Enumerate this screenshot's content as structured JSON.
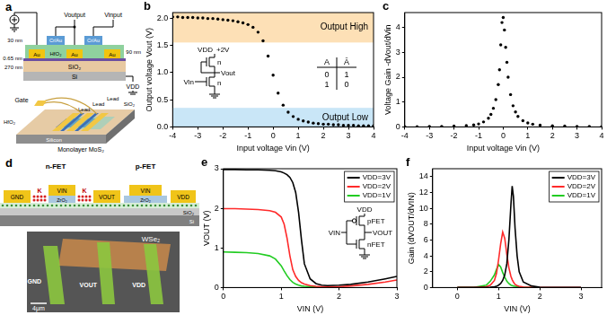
{
  "chart_data": [
    {
      "panel": "b",
      "type": "scatter",
      "x_label": "Input voltage Vin (V)",
      "y_label": "Output voltage Vout (V)",
      "x": [
        -4,
        -3.8,
        -3.6,
        -3.4,
        -3.2,
        -3,
        -2.8,
        -2.6,
        -2.4,
        -2.2,
        -2,
        -1.8,
        -1.6,
        -1.4,
        -1.2,
        -1,
        -0.8,
        -0.6,
        -0.4,
        -0.2,
        0,
        0.2,
        0.4,
        0.6,
        0.8,
        1,
        1.2,
        1.4,
        1.6,
        1.8,
        2,
        2.2,
        2.4,
        2.6,
        2.8,
        3,
        3.2,
        3.4,
        3.6,
        3.8,
        4
      ],
      "values": [
        2.02,
        2.02,
        2.01,
        2.01,
        2.01,
        2,
        2,
        1.99,
        1.99,
        1.98,
        1.97,
        1.96,
        1.95,
        1.93,
        1.91,
        1.88,
        1.83,
        1.74,
        1.58,
        1.3,
        0.95,
        0.62,
        0.4,
        0.27,
        0.19,
        0.14,
        0.11,
        0.09,
        0.07,
        0.06,
        0.05,
        0.05,
        0.04,
        0.04,
        0.03,
        0.03,
        0.03,
        0.02,
        0.02,
        0.02,
        0.02
      ],
      "color": "#000000",
      "xlim": [
        -4,
        4
      ],
      "xticks": [
        -4,
        -3,
        -2,
        -1,
        0,
        1,
        2,
        3,
        4
      ],
      "ylim": [
        0,
        2.1
      ],
      "yticks": [
        {
          "value": 0,
          "label": "0.0"
        },
        {
          "value": 0.5,
          "label": "0.5"
        },
        {
          "value": 1,
          "label": "1.0"
        },
        {
          "value": 1.5,
          "label": "1.5"
        },
        {
          "value": 2,
          "label": "2.0"
        }
      ],
      "grid": false,
      "bands": [
        {
          "label": "Output High",
          "from": 1.55,
          "to": 2.1,
          "color": "#fde0b6"
        },
        {
          "label": "Output Low",
          "from": 0,
          "to": 0.35,
          "color": "#c9e6f7"
        }
      ],
      "inset": {
        "supply": "VDD",
        "supply_value": "+2V",
        "transistors": [
          "n",
          "n"
        ],
        "output": "Vout",
        "input": "Vin",
        "truth_table": {
          "header": [
            "A",
            "Ā"
          ],
          "rows": [
            [
              0,
              1
            ],
            [
              1,
              0
            ]
          ]
        }
      }
    },
    {
      "panel": "c",
      "type": "scatter",
      "x_label": "Input voltage Vin (V)",
      "y_label": "Voltage Gain -dVout/dVin",
      "x": [
        -4,
        -3.5,
        -3,
        -2.5,
        -2,
        -1.5,
        -1.2,
        -1,
        -0.8,
        -0.6,
        -0.5,
        -0.4,
        -0.3,
        -0.2,
        -0.15,
        -0.1,
        -0.05,
        0,
        0.05,
        0.1,
        0.15,
        0.2,
        0.3,
        0.4,
        0.5,
        0.6,
        0.8,
        1,
        1.2,
        1.5,
        2,
        2.5,
        3,
        3.5,
        4
      ],
      "values": [
        0.01,
        0.01,
        0.02,
        0.02,
        0.03,
        0.05,
        0.08,
        0.12,
        0.2,
        0.35,
        0.5,
        0.75,
        1.1,
        1.7,
        2.3,
        3.3,
        4.2,
        4.4,
        3.9,
        3.2,
        2.6,
        2.0,
        1.3,
        0.85,
        0.6,
        0.42,
        0.25,
        0.16,
        0.11,
        0.07,
        0.04,
        0.03,
        0.02,
        0.02,
        0.01
      ],
      "color": "#000000",
      "xlim": [
        -4,
        4
      ],
      "xticks": [
        -4,
        -3,
        -2,
        -1,
        0,
        1,
        2,
        3,
        4
      ],
      "ylim": [
        0,
        4.6
      ],
      "yticks": [
        0,
        1,
        2,
        3,
        4
      ],
      "grid": false
    },
    {
      "panel": "e",
      "type": "line",
      "x_label": "VIN (V)",
      "y_label": "VOUT (V)",
      "x": [
        0,
        0.2,
        0.4,
        0.6,
        0.8,
        0.9,
        1.0,
        1.05,
        1.1,
        1.15,
        1.2,
        1.25,
        1.3,
        1.35,
        1.4,
        1.5,
        1.6,
        1.7,
        1.8,
        2.0,
        2.2,
        2.5,
        2.8,
        3.0
      ],
      "series": [
        {
          "name": "VDD=3V",
          "color": "#000000",
          "values": [
            2.98,
            2.98,
            2.97,
            2.97,
            2.96,
            2.95,
            2.92,
            2.89,
            2.85,
            2.78,
            2.65,
            2.4,
            1.9,
            1.2,
            0.6,
            0.22,
            0.1,
            0.06,
            0.05,
            0.06,
            0.08,
            0.14,
            0.22,
            0.28
          ]
        },
        {
          "name": "VDD=2V",
          "color": "#ff2a2a",
          "values": [
            1.99,
            1.99,
            1.98,
            1.97,
            1.94,
            1.9,
            1.78,
            1.6,
            1.25,
            0.8,
            0.45,
            0.28,
            0.18,
            0.12,
            0.09,
            0.05,
            0.03,
            0.02,
            0.02,
            0.02,
            0.04,
            0.08,
            0.14,
            0.19
          ]
        },
        {
          "name": "VDD=1V",
          "color": "#22cc22",
          "values": [
            0.9,
            0.89,
            0.88,
            0.86,
            0.8,
            0.72,
            0.55,
            0.42,
            0.3,
            0.2,
            0.13,
            0.09,
            0.06,
            0.04,
            0.03,
            0.02,
            0.01,
            0.01,
            0.01,
            null,
            null,
            null,
            null,
            null
          ]
        }
      ],
      "xlim": [
        0,
        3
      ],
      "xticks": [
        0,
        1,
        2,
        3
      ],
      "ylim": [
        0,
        3
      ],
      "yticks": [
        0,
        1,
        2,
        3
      ],
      "grid": false,
      "legend": "upper right",
      "inset": {
        "supply": "VDD",
        "transistors": [
          "pFET",
          "nFET"
        ],
        "input": "VIN",
        "output": "VOUT"
      }
    },
    {
      "panel": "f",
      "type": "line",
      "x_label": "VIN (V)",
      "y_label": "Gain (dVOUT/dVIN)",
      "x": [
        0,
        0.4,
        0.7,
        0.8,
        0.9,
        0.95,
        1.0,
        1.05,
        1.1,
        1.15,
        1.2,
        1.25,
        1.3,
        1.33,
        1.36,
        1.4,
        1.45,
        1.5,
        1.6,
        1.8,
        2.0,
        2.5,
        3.0
      ],
      "series": [
        {
          "name": "VDD=3V",
          "color": "#000000",
          "values": [
            0,
            0,
            0.02,
            0.05,
            0.1,
            0.15,
            0.3,
            0.5,
            0.9,
            1.6,
            3.0,
            6.0,
            10.5,
            12.8,
            11.5,
            7.5,
            4.0,
            2.0,
            0.7,
            0.2,
            0.05,
            0.02,
            0.02
          ]
        },
        {
          "name": "VDD=2V",
          "color": "#ff2a2a",
          "values": [
            0,
            0,
            0.1,
            0.3,
            0.9,
            1.8,
            3.5,
            5.5,
            7.0,
            6.2,
            4.2,
            2.5,
            1.4,
            1.0,
            0.7,
            0.4,
            0.25,
            0.15,
            0.08,
            0.03,
            0.02,
            0.01,
            0.01
          ]
        },
        {
          "name": "VDD=1V",
          "color": "#22cc22",
          "values": [
            0,
            0.02,
            0.3,
            0.8,
            1.6,
            2.3,
            2.9,
            2.6,
            1.9,
            1.3,
            0.8,
            0.5,
            0.3,
            0.25,
            0.2,
            0.15,
            0.1,
            0.07,
            0.03,
            0.01,
            null,
            null,
            null
          ]
        }
      ],
      "xlim": [
        -0.6,
        3.5
      ],
      "xticks": [
        0,
        1,
        2,
        3
      ],
      "ylim": [
        0,
        15
      ],
      "yticks": [
        0,
        2,
        4,
        6,
        8,
        10,
        12,
        14
      ],
      "grid": false,
      "legend": "upper right"
    }
  ],
  "diagrams": {
    "a": {
      "panel": "a",
      "output": "Voutput",
      "input": "Vinput",
      "gates": [
        "Cr/Au",
        "Cr/Au"
      ],
      "contacts": [
        "Au",
        "Au",
        "Au"
      ],
      "dielectric": "HfO₂",
      "oxide": "SiO₂",
      "substrate": "Si",
      "thicknesses": [
        "30 nm",
        "0.65 nm",
        "270 nm",
        "90 nm"
      ],
      "supply": "VDD",
      "device": {
        "gate": "Gate",
        "leads": [
          "Lead",
          "Lead",
          "Lead"
        ],
        "dielectric": "HfO₂",
        "channel": "Monolayer MoS₂",
        "substrate": "Silicon",
        "oxide": "SiO₂"
      }
    },
    "d": {
      "panel": "d",
      "devices": [
        "n-FET",
        "p-FET"
      ],
      "contacts": [
        "GND",
        "VOUT",
        "VDD"
      ],
      "gates": [
        "VIN",
        "VIN"
      ],
      "dopant": [
        "K",
        "K"
      ],
      "gate_dielectric": [
        "ZrO₂",
        "ZrO₂"
      ],
      "oxide": "SiO₂",
      "substrate": "Si",
      "image": {
        "material": "WSe₂",
        "labels": [
          "GND",
          "VOUT",
          "VDD"
        ],
        "scale_bar": "4μm"
      }
    }
  }
}
